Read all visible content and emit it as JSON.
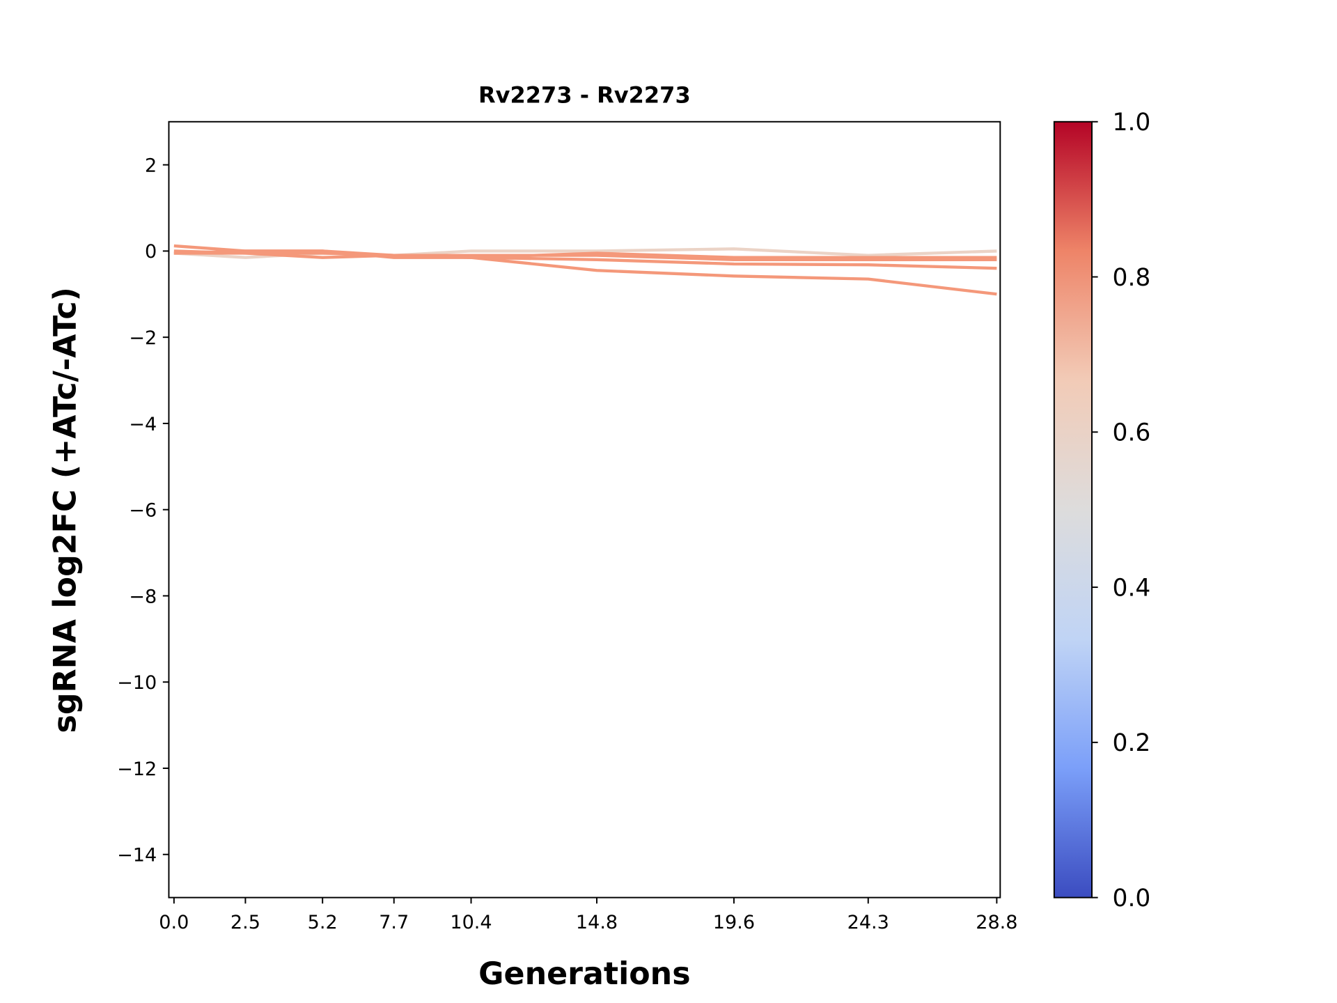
{
  "chart_data": {
    "type": "line",
    "title": "Rv2273 - Rv2273",
    "xlabel": "Generations",
    "ylabel": "sgRNA log2FC (+ATc/-ATc)",
    "x": [
      0.0,
      2.5,
      5.2,
      7.7,
      10.4,
      14.8,
      19.6,
      24.3,
      28.8
    ],
    "xticklabels": [
      "0.0",
      "2.5",
      "5.2",
      "7.7",
      "10.4",
      "14.8",
      "19.6",
      "24.3",
      "28.8"
    ],
    "xlim": [
      -0.2,
      29.0
    ],
    "ylim": [
      -15,
      3
    ],
    "yticks": [
      2,
      0,
      -2,
      -4,
      -6,
      -8,
      -10,
      -12,
      -14
    ],
    "yticklabels": [
      "2",
      "0",
      "−2",
      "−4",
      "−6",
      "−8",
      "−10",
      "−12",
      "−14"
    ],
    "grid": false,
    "series": [
      {
        "color": "#ebd3c6",
        "values": [
          -0.05,
          -0.15,
          -0.05,
          -0.1,
          0.0,
          0.0,
          0.05,
          -0.1,
          0.0
        ]
      },
      {
        "color": "#f4987a",
        "values": [
          0.0,
          -0.05,
          -0.15,
          -0.1,
          -0.1,
          -0.1,
          -0.2,
          -0.2,
          -0.2
        ]
      },
      {
        "color": "#f4987a",
        "values": [
          -0.05,
          0.0,
          0.0,
          -0.15,
          -0.15,
          -0.05,
          -0.15,
          -0.15,
          -0.15
        ]
      },
      {
        "color": "#f4987a",
        "values": [
          -0.05,
          -0.05,
          -0.05,
          -0.1,
          -0.15,
          -0.2,
          -0.3,
          -0.32,
          -0.4
        ]
      },
      {
        "color": "#f4987a",
        "values": [
          0.12,
          0.0,
          0.0,
          -0.1,
          -0.15,
          -0.45,
          -0.58,
          -0.65,
          -1.0
        ]
      }
    ],
    "colorbar": {
      "colormap": "coolwarm",
      "range": [
        0.0,
        1.0
      ],
      "ticks": [
        "0.0",
        "0.2",
        "0.4",
        "0.6",
        "0.8",
        "1.0"
      ],
      "colors": [
        "#3b4cc0",
        "#7b9ff9",
        "#c0d4f5",
        "#dddcdc",
        "#f2cbb7",
        "#ee8468",
        "#b40426"
      ]
    }
  }
}
